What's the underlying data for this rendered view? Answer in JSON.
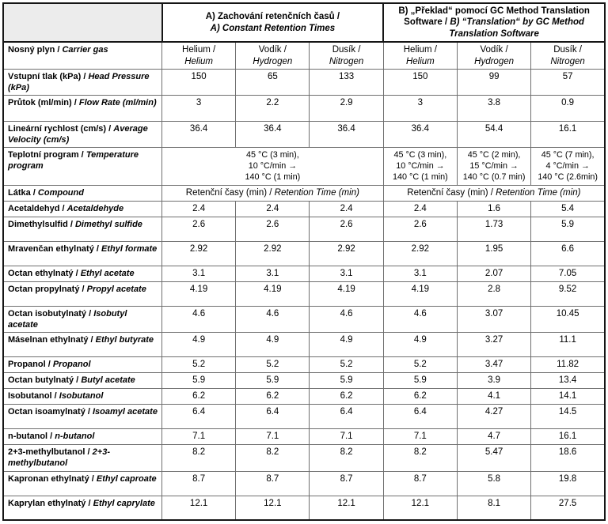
{
  "colors": {
    "corner_bg": "#ececec",
    "grid_line": "#6f6f6f",
    "outer_border": "#151515"
  },
  "header": {
    "section_a_cz": "A) Zachování retenčních časů /",
    "section_a_en": "A) Constant Retention Times",
    "section_b_cz": "B) „Překlad“ pomocí GC Method Translation Software /",
    "section_b_en": "B) “Translation“ by GC Method Translation Software"
  },
  "carrier_row": {
    "label_cz": "Nosný plyn /",
    "label_en": "Carrier gas",
    "gases": [
      {
        "cz": "Helium /",
        "en": "Helium"
      },
      {
        "cz": "Vodík /",
        "en": "Hydrogen"
      },
      {
        "cz": "Dusík /",
        "en": "Nitrogen"
      },
      {
        "cz": "Helium /",
        "en": "Helium"
      },
      {
        "cz": "Vodík /",
        "en": "Hydrogen"
      },
      {
        "cz": "Dusík /",
        "en": "Nitrogen"
      }
    ]
  },
  "param_rows": [
    {
      "label_cz": "Vstupní tlak (kPa) /",
      "label_en": "Head Pressure (kPa)",
      "values": [
        "150",
        "65",
        "133",
        "150",
        "99",
        "57"
      ]
    },
    {
      "label_cz": "Průtok (ml/min) /",
      "label_en": "Flow Rate (ml/min)",
      "values": [
        "3",
        "2.2",
        "2.9",
        "3",
        "3.8",
        "0.9"
      ]
    },
    {
      "label_cz": "Lineární rychlost (cm/s) /",
      "label_en": "Average Velocity (cm/s)",
      "values": [
        "36.4",
        "36.4",
        "36.4",
        "36.4",
        "54.4",
        "16.1"
      ]
    }
  ],
  "temp_row": {
    "label_cz": "Teplotní program /",
    "label_en": "Temperature program",
    "program_a": "45 °C (3 min),\n10 °C/min →\n140 °C (1 min)",
    "program_b_helium": "45 °C (3 min),\n10 °C/min →\n140 °C (1 min)",
    "program_b_hydrogen": "45 °C (2 min),\n15 °C/min →\n140 °C (0.7 min)",
    "program_b_nitrogen": "45 °C (7 min),\n4 °C/min →\n140 °C (2.6min)"
  },
  "compound_header": {
    "label_cz": "Látka /",
    "label_en": "Compound",
    "ret_cz": "Retenční časy (min) /",
    "ret_en": "Retention Time (min)"
  },
  "compounds": [
    {
      "cz": "Acetaldehyd /",
      "en": "Acetaldehyde",
      "values": [
        "2.4",
        "2.4",
        "2.4",
        "2.4",
        "1.6",
        "5.4"
      ]
    },
    {
      "cz": "Dimethylsulfid /",
      "en": "Dimethyl sulfide",
      "values": [
        "2.6",
        "2.6",
        "2.6",
        "2.6",
        "1.73",
        "5.9"
      ]
    },
    {
      "cz": "Mravenčan ethylnatý /",
      "en": "Ethyl formate",
      "values": [
        "2.92",
        "2.92",
        "2.92",
        "2.92",
        "1.95",
        "6.6"
      ]
    },
    {
      "cz": "Octan ethylnatý /",
      "en": "Ethyl acetate",
      "values": [
        "3.1",
        "3.1",
        "3.1",
        "3.1",
        "2.07",
        "7.05"
      ]
    },
    {
      "cz": "Octan propylnatý /",
      "en": "Propyl acetate",
      "values": [
        "4.19",
        "4.19",
        "4.19",
        "4.19",
        "2.8",
        "9.52"
      ]
    },
    {
      "cz": "Octan isobutylnatý /",
      "en": "Isobutyl acetate",
      "values": [
        "4.6",
        "4.6",
        "4.6",
        "4.6",
        "3.07",
        "10.45"
      ]
    },
    {
      "cz": "Máselnan ethylnatý /",
      "en": "Ethyl butyrate",
      "values": [
        "4.9",
        "4.9",
        "4.9",
        "4.9",
        "3.27",
        "11.1"
      ]
    },
    {
      "cz": "Propanol /",
      "en": "Propanol",
      "values": [
        "5.2",
        "5.2",
        "5.2",
        "5.2",
        "3.47",
        "11.82"
      ]
    },
    {
      "cz": "Octan butylnatý /",
      "en": "Butyl acetate",
      "values": [
        "5.9",
        "5.9",
        "5.9",
        "5.9",
        "3.9",
        "13.4"
      ]
    },
    {
      "cz": "Isobutanol /",
      "en": "Isobutanol",
      "values": [
        "6.2",
        "6.2",
        "6.2",
        "6.2",
        "4.1",
        "14.1"
      ]
    },
    {
      "cz": "Octan isoamylnatý /",
      "en": "Isoamyl acetate",
      "values": [
        "6.4",
        "6.4",
        "6.4",
        "6.4",
        "4.27",
        "14.5"
      ]
    },
    {
      "cz": "n-butanol /",
      "en": "n-butanol",
      "values": [
        "7.1",
        "7.1",
        "7.1",
        "7.1",
        "4.7",
        "16.1"
      ]
    },
    {
      "cz": "2+3-methylbutanol /",
      "en": "2+3-methylbutanol",
      "values": [
        "8.2",
        "8.2",
        "8.2",
        "8.2",
        "5.47",
        "18.6"
      ]
    },
    {
      "cz": "Kapronan ethylnatý /",
      "en": "Ethyl caproate",
      "values": [
        "8.7",
        "8.7",
        "8.7",
        "8.7",
        "5.8",
        "19.8"
      ]
    },
    {
      "cz": "Kaprylan ethylnatý /",
      "en": "Ethyl caprylate",
      "values": [
        "12.1",
        "12.1",
        "12.1",
        "12.1",
        "8.1",
        "27.5"
      ]
    }
  ]
}
